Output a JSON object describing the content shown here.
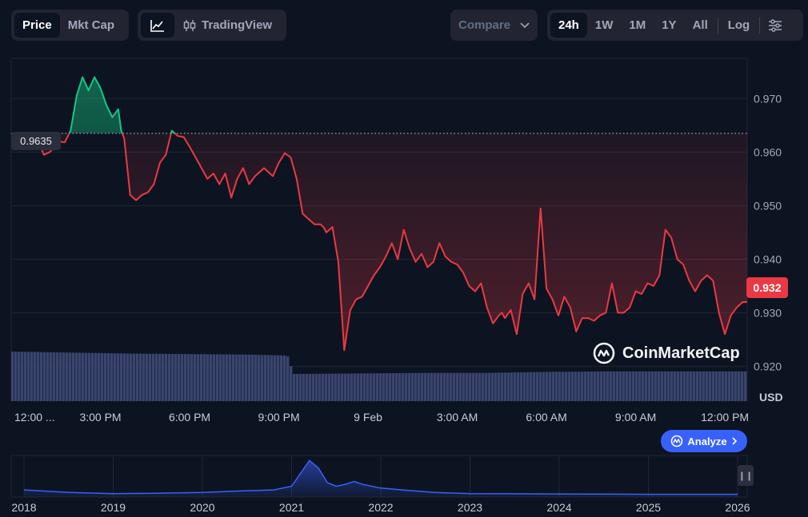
{
  "toolbar": {
    "view_tabs": [
      "Price",
      "Mkt Cap"
    ],
    "active_view": "Price",
    "tradingview_label": "TradingView",
    "compare_label": "Compare",
    "ranges": [
      "24h",
      "1W",
      "1M",
      "1Y",
      "All"
    ],
    "active_range": "24h",
    "log_label": "Log"
  },
  "current_price_label": "0.932",
  "reference_price_label": "0.9635",
  "currency_label": "USD",
  "watermark": "CoinMarketCap",
  "analyze_label": "Analyze",
  "colors": {
    "up": "#16c784",
    "down": "#ea3943",
    "volume": "#3a4570",
    "accent": "#3861fb",
    "background": "#0d1421"
  },
  "icons": [
    "line-chart-icon",
    "candlestick-icon",
    "chevron-down-icon",
    "settings-sliders-icon",
    "coinmarketcap-logo-icon",
    "analyze-icon",
    "chevron-right-icon",
    "pause-icon"
  ],
  "chart_data": [
    {
      "type": "line",
      "reference_value": 0.9635,
      "ylim": [
        0.9135,
        0.9775
      ],
      "y_ticks": [
        0.92,
        0.93,
        0.94,
        0.95,
        0.96,
        0.97
      ],
      "y_tick_labels": [
        "0.920",
        "0.930",
        "0.940",
        "0.950",
        "0.960",
        "0.970"
      ],
      "xlim": [
        0,
        24.75
      ],
      "x_ticks": [
        0,
        3,
        6,
        9,
        12,
        15,
        18,
        21,
        24
      ],
      "x_tick_labels": [
        "12:00 ...",
        "3:00 PM",
        "6:00 PM",
        "9:00 PM",
        "9 Feb",
        "3:00 AM",
        "6:00 AM",
        "9:00 AM",
        "12:00 PM"
      ],
      "series": [
        {
          "x": [
            0,
            0.3,
            0.6,
            0.9,
            1.1,
            1.3,
            1.6,
            1.8,
            2.0,
            2.2,
            2.4,
            2.6,
            2.8,
            3.0,
            3.2,
            3.4,
            3.6,
            3.7,
            3.8,
            4.0,
            4.2,
            4.4,
            4.6,
            4.8,
            5.0,
            5.2,
            5.4,
            5.6,
            5.8,
            6.0,
            6.2,
            6.4,
            6.6,
            6.8,
            7.0,
            7.2,
            7.4,
            7.6,
            7.8,
            8.0,
            8.2,
            8.5,
            8.8,
            9.0,
            9.2,
            9.4,
            9.6,
            9.8,
            10.0,
            10.2,
            10.4,
            10.5,
            10.6,
            10.8,
            11.0,
            11.2,
            11.4,
            11.6,
            11.8,
            12.0,
            12.2,
            12.4,
            12.6,
            12.8,
            13.0,
            13.2,
            13.4,
            13.6,
            13.8,
            14.0,
            14.2,
            14.4,
            14.6,
            14.8,
            15.0,
            15.2,
            15.4,
            15.6,
            15.8,
            16.0,
            16.2,
            16.4,
            16.5,
            16.6,
            16.8,
            17.0,
            17.2,
            17.4,
            17.6,
            17.8,
            18.0,
            18.2,
            18.4,
            18.6,
            18.8,
            19.0,
            19.2,
            19.4,
            19.6,
            19.8,
            20.0,
            20.2,
            20.4,
            20.6,
            20.8,
            21.0,
            21.2,
            21.4,
            21.6,
            21.8,
            22.0,
            22.2,
            22.4,
            22.6,
            22.8,
            23.0,
            23.2,
            23.4,
            23.6,
            23.8,
            24.0,
            24.2,
            24.4,
            24.6,
            24.75
          ],
          "y": [
            0.9635,
            0.9625,
            0.961,
            0.962,
            0.9595,
            0.96,
            0.962,
            0.9618,
            0.964,
            0.9705,
            0.974,
            0.9715,
            0.974,
            0.972,
            0.9688,
            0.9665,
            0.968,
            0.964,
            0.9625,
            0.952,
            0.951,
            0.952,
            0.9525,
            0.954,
            0.958,
            0.9595,
            0.964,
            0.963,
            0.9628,
            0.961,
            0.959,
            0.957,
            0.955,
            0.956,
            0.954,
            0.956,
            0.9515,
            0.955,
            0.957,
            0.954,
            0.9555,
            0.957,
            0.9555,
            0.958,
            0.9598,
            0.959,
            0.955,
            0.9485,
            0.9475,
            0.9465,
            0.9465,
            0.946,
            0.945,
            0.946,
            0.9395,
            0.923,
            0.9305,
            0.9325,
            0.933,
            0.935,
            0.937,
            0.9385,
            0.9405,
            0.943,
            0.94,
            0.9455,
            0.942,
            0.9395,
            0.941,
            0.9385,
            0.9395,
            0.943,
            0.9405,
            0.9395,
            0.939,
            0.9375,
            0.935,
            0.934,
            0.9355,
            0.931,
            0.928,
            0.9295,
            0.93,
            0.929,
            0.9305,
            0.926,
            0.9335,
            0.9355,
            0.9325,
            0.9495,
            0.9345,
            0.9325,
            0.9295,
            0.933,
            0.931,
            0.9265,
            0.929,
            0.929,
            0.9285,
            0.9295,
            0.93,
            0.9355,
            0.93,
            0.93,
            0.931,
            0.934,
            0.9335,
            0.9355,
            0.935,
            0.937,
            0.9455,
            0.944,
            0.94,
            0.939,
            0.936,
            0.934,
            0.936,
            0.937,
            0.936,
            0.93,
            0.926,
            0.9295,
            0.931,
            0.932,
            0.932
          ]
        }
      ],
      "volume": {
        "x": [
          0,
          2,
          4,
          6,
          8,
          9.3,
          9.5,
          10,
          12,
          14,
          16,
          18,
          20,
          22,
          24,
          24.75
        ],
        "relative_height": [
          1.0,
          0.98,
          0.96,
          0.95,
          0.94,
          0.92,
          0.55,
          0.55,
          0.56,
          0.57,
          0.57,
          0.59,
          0.6,
          0.6,
          0.6,
          0.6
        ]
      }
    },
    {
      "type": "area",
      "x_tick_labels": [
        "2018",
        "2019",
        "2020",
        "2021",
        "2022",
        "2023",
        "2024",
        "2025",
        "2026"
      ],
      "x": [
        2018.0,
        2018.5,
        2019.0,
        2019.5,
        2020.0,
        2020.4,
        2020.8,
        2021.0,
        2021.1,
        2021.2,
        2021.3,
        2021.4,
        2021.5,
        2021.6,
        2021.7,
        2021.8,
        2022.0,
        2022.3,
        2022.6,
        2023.0,
        2024.0,
        2025.0,
        2026.0
      ],
      "relative_value": [
        0.15,
        0.08,
        0.05,
        0.06,
        0.08,
        0.12,
        0.15,
        0.25,
        0.6,
        0.95,
        0.75,
        0.35,
        0.25,
        0.3,
        0.38,
        0.3,
        0.2,
        0.14,
        0.08,
        0.05,
        0.04,
        0.03,
        0.03
      ]
    }
  ]
}
